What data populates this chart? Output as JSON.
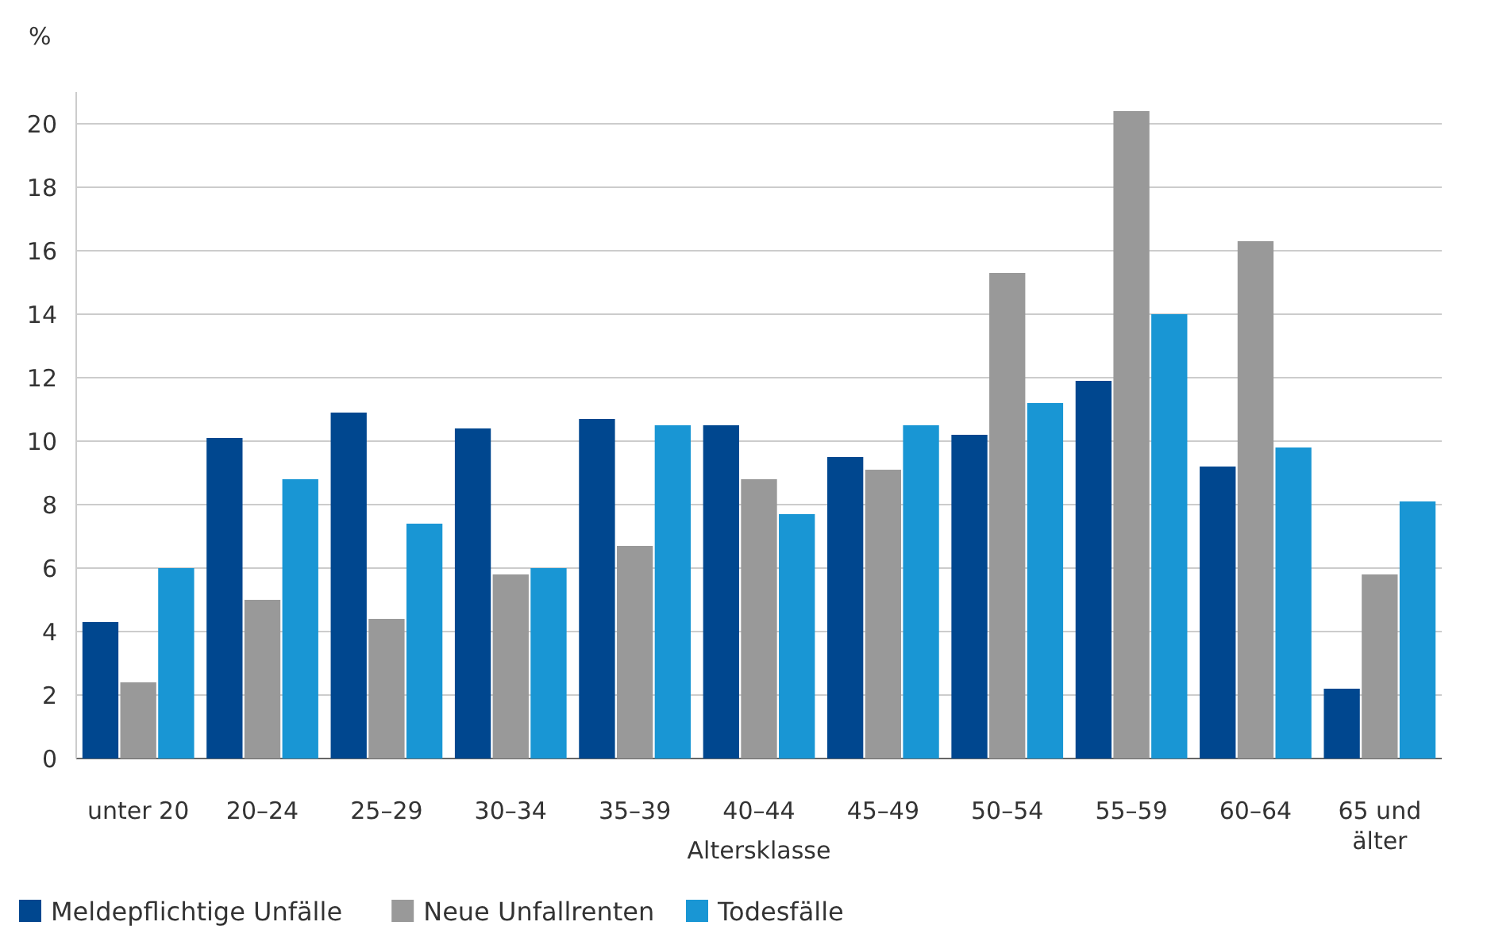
{
  "chart_data": {
    "type": "bar",
    "ylabel": "%",
    "xlabel": "Altersklasse",
    "categories": [
      "unter 20",
      "20–24",
      "25–29",
      "30–34",
      "35–39",
      "40–44",
      "45–49",
      "50–54",
      "55–59",
      "60–64",
      "65 und älter"
    ],
    "series": [
      {
        "name": "Meldepflichtige Unfälle",
        "color": "#00478f",
        "values": [
          4.3,
          10.1,
          10.9,
          10.4,
          10.7,
          10.5,
          9.5,
          10.2,
          11.9,
          9.2,
          2.2
        ]
      },
      {
        "name": "Neue Unfallrenten",
        "color": "#999999",
        "values": [
          2.4,
          5.0,
          4.4,
          5.8,
          6.7,
          8.8,
          9.1,
          15.3,
          20.4,
          16.3,
          5.8
        ]
      },
      {
        "name": "Todesfälle",
        "color": "#1996d4",
        "values": [
          6.0,
          8.8,
          7.4,
          6.0,
          10.5,
          7.7,
          10.5,
          11.2,
          14.0,
          9.8,
          8.1
        ]
      }
    ],
    "ylim": [
      0,
      21
    ],
    "yticks": [
      0,
      2,
      4,
      6,
      8,
      10,
      12,
      14,
      16,
      18,
      20
    ],
    "grid": "y",
    "legend": "bottom left"
  }
}
